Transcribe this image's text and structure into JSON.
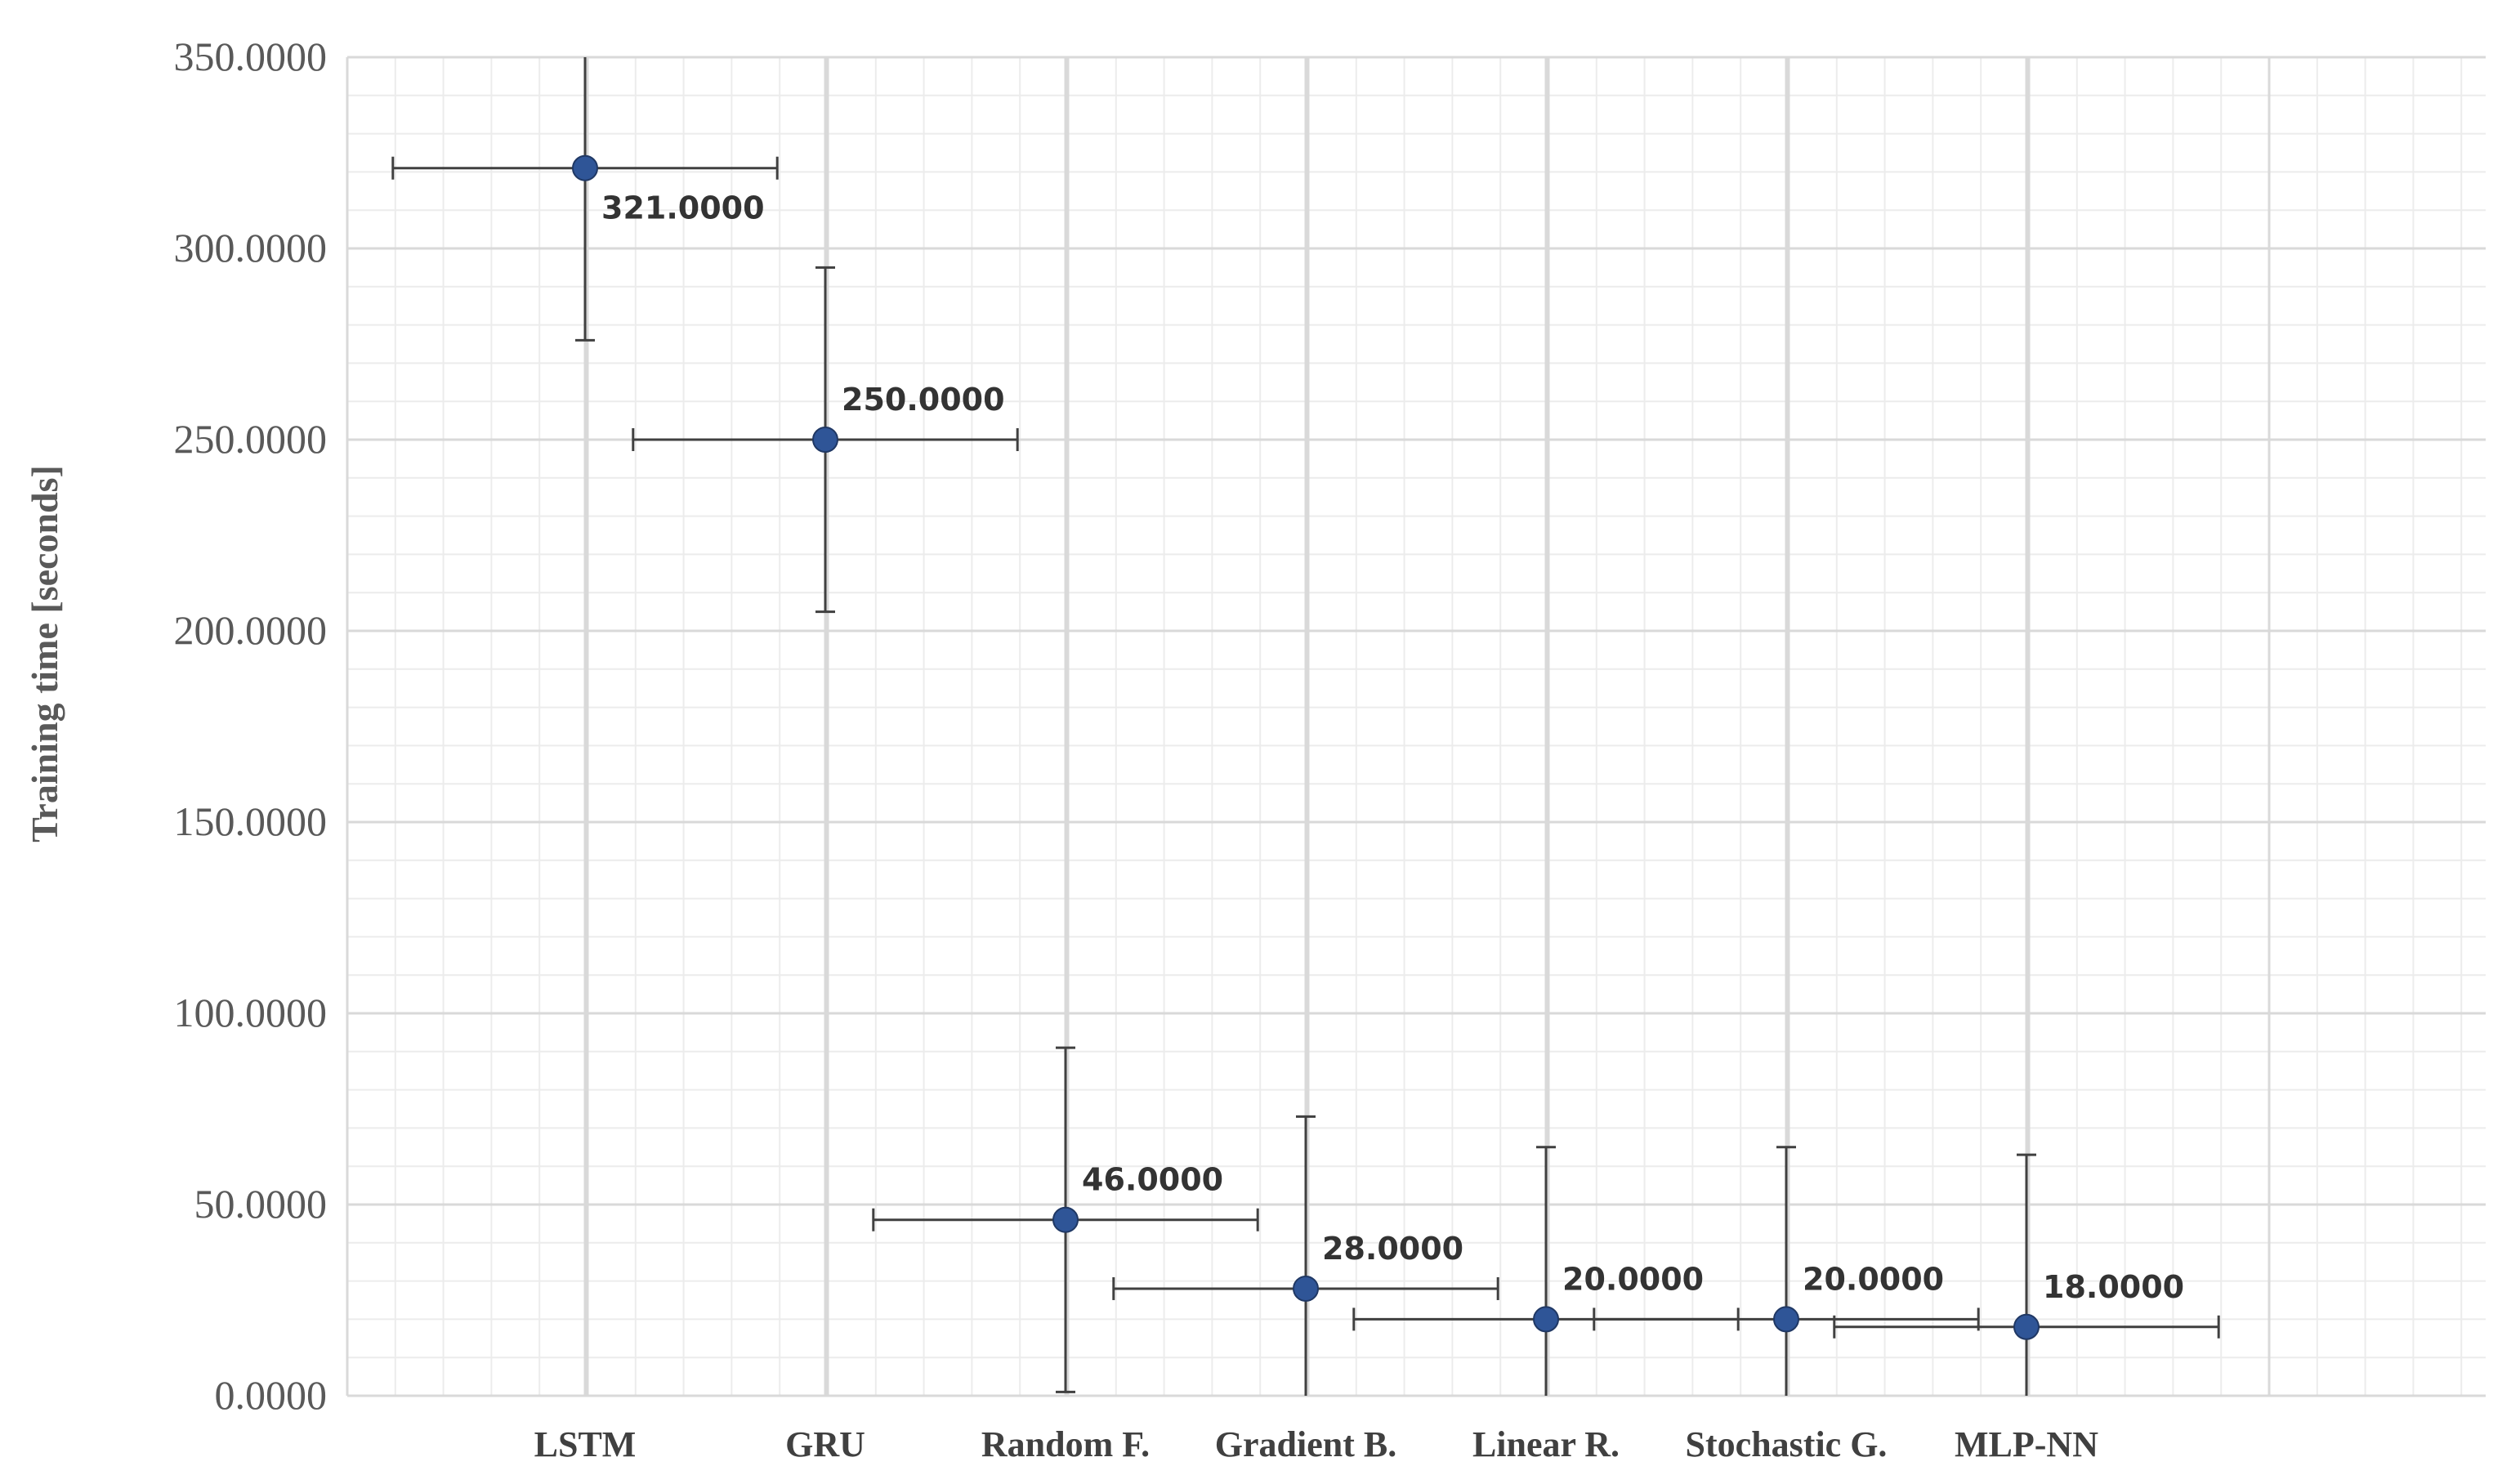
{
  "chart_data": {
    "type": "scatter",
    "title": "",
    "xlabel": "",
    "ylabel": "Training time [seconds]",
    "categories": [
      "LSTM",
      "GRU",
      "Random F.",
      "Gradient B.",
      "Linear R.",
      "Stochastic G.",
      "MLP-NN"
    ],
    "values": [
      321,
      250,
      46,
      28,
      20,
      20,
      18
    ],
    "data_labels": [
      "321.0000",
      "250.0000",
      "46.0000",
      "28.0000",
      "20.0000",
      "20.0000",
      "18.0000"
    ],
    "y_error": [
      45,
      45,
      45,
      45,
      45,
      45,
      45
    ],
    "x_error_categories": 0.8,
    "ylim": [
      0,
      350
    ],
    "y_ticks": [
      0,
      50,
      100,
      150,
      200,
      250,
      300,
      350
    ],
    "y_tick_labels": [
      "0.0000",
      "50.0000",
      "100.0000",
      "150.0000",
      "200.0000",
      "250.0000",
      "300.0000",
      "350.0000"
    ],
    "grid": true,
    "marker_color": "#2f5597",
    "error_bar_color": "#404040",
    "grid_color": "#d9d9d9"
  }
}
